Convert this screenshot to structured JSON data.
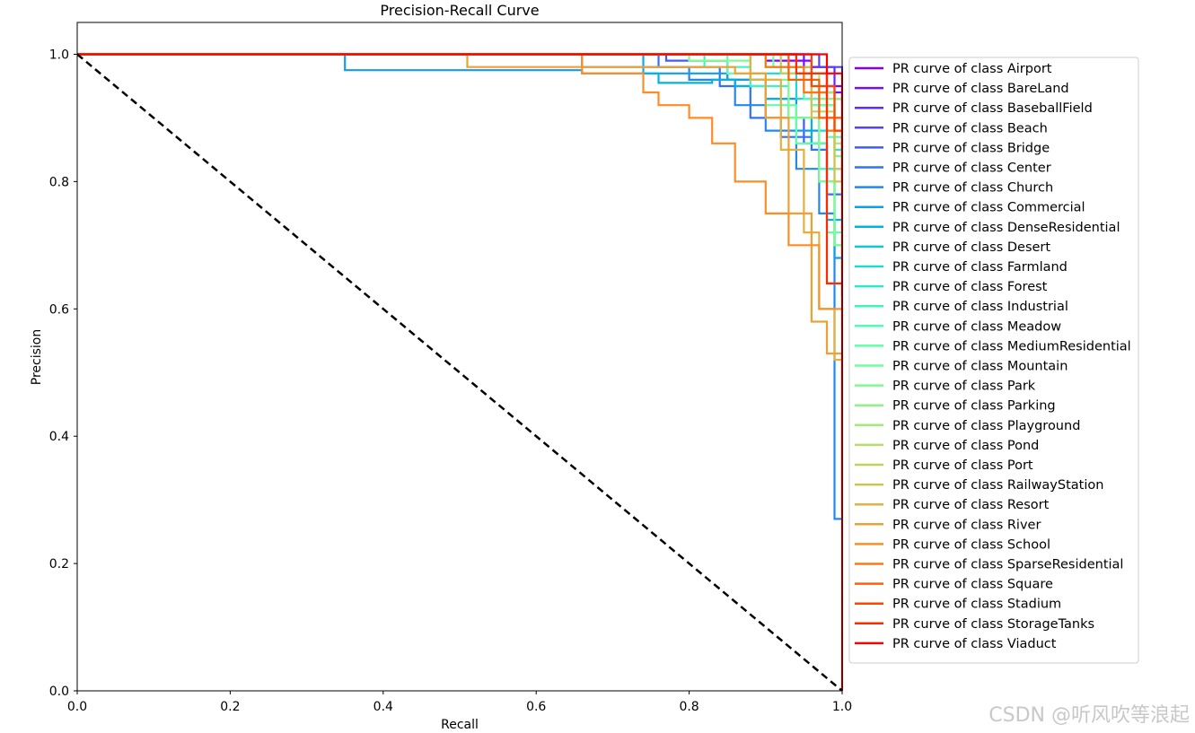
{
  "chart_data": {
    "type": "line",
    "title": "Precision-Recall Curve",
    "xlabel": "Recall",
    "ylabel": "Precision",
    "xlim": [
      0.0,
      1.0
    ],
    "ylim": [
      0.0,
      1.05
    ],
    "xticks": [
      "0.0",
      "0.2",
      "0.4",
      "0.6",
      "0.8",
      "1.0"
    ],
    "yticks": [
      "0.0",
      "0.2",
      "0.4",
      "0.6",
      "0.8",
      "1.0"
    ],
    "grid": false,
    "legend_position": "right",
    "baseline": {
      "name": "random",
      "style": "dashed",
      "color": "#000000",
      "x": [
        0,
        1
      ],
      "y": [
        1,
        0
      ]
    },
    "series": [
      {
        "name": "PR curve of class Airport",
        "color": "#8000ff",
        "x": [
          0,
          0.9,
          0.9,
          0.96,
          0.96,
          0.98,
          0.98,
          1.0,
          1.0
        ],
        "y": [
          1,
          1,
          0.99,
          0.99,
          0.97,
          0.97,
          0.95,
          0.95,
          0.93
        ]
      },
      {
        "name": "PR curve of class BareLand",
        "color": "#7010ff",
        "x": [
          0,
          0.95,
          0.95,
          0.98,
          0.98,
          1.0,
          1.0
        ],
        "y": [
          1,
          1,
          0.98,
          0.98,
          0.94,
          0.94,
          0.9
        ]
      },
      {
        "name": "PR curve of class BaseballField",
        "color": "#6129fe",
        "x": [
          0,
          0.94,
          0.94,
          0.99,
          0.99,
          1.0,
          1.0
        ],
        "y": [
          1,
          1,
          0.98,
          0.98,
          0.93,
          0.93,
          0.92
        ]
      },
      {
        "name": "PR curve of class Beach",
        "color": "#5142fc",
        "x": [
          0,
          0.97,
          0.97,
          1.0,
          1.0
        ],
        "y": [
          1,
          1,
          0.98,
          0.98,
          0.96
        ]
      },
      {
        "name": "PR curve of class Bridge",
        "color": "#415af9",
        "x": [
          0,
          0.77,
          0.77,
          0.85,
          0.85,
          0.9,
          0.9,
          0.95,
          0.95,
          0.98,
          0.98,
          1.0,
          1.0
        ],
        "y": [
          1,
          1,
          0.99,
          0.99,
          0.96,
          0.96,
          0.9,
          0.9,
          0.86,
          0.86,
          0.82,
          0.82,
          0.8
        ]
      },
      {
        "name": "PR curve of class Center",
        "color": "#3171f5",
        "x": [
          0,
          0.76,
          0.76,
          0.84,
          0.84,
          0.88,
          0.88,
          0.92,
          0.92,
          0.96,
          0.96,
          0.98,
          0.98,
          1.0,
          1.0
        ],
        "y": [
          1,
          1,
          0.98,
          0.98,
          0.95,
          0.95,
          0.9,
          0.9,
          0.87,
          0.87,
          0.85,
          0.85,
          0.78,
          0.78,
          0.76
        ]
      },
      {
        "name": "PR curve of class Church",
        "color": "#2188f0",
        "x": [
          0,
          0.66,
          0.66,
          0.8,
          0.8,
          0.86,
          0.86,
          0.9,
          0.9,
          0.94,
          0.94,
          0.97,
          0.97,
          0.99,
          0.99,
          1.0,
          1.0
        ],
        "y": [
          1,
          1,
          0.98,
          0.98,
          0.96,
          0.96,
          0.92,
          0.92,
          0.88,
          0.88,
          0.82,
          0.82,
          0.75,
          0.75,
          0.27,
          0.27,
          0.27
        ]
      },
      {
        "name": "PR curve of class Commercial",
        "color": "#119dea",
        "x": [
          0,
          0.35,
          0.35,
          0.66,
          0.66,
          0.85,
          0.85,
          0.9,
          0.9,
          0.94,
          0.94,
          0.97,
          0.97,
          0.99,
          0.99,
          1.0,
          1.0
        ],
        "y": [
          1,
          1,
          0.975,
          0.975,
          0.97,
          0.97,
          0.96,
          0.96,
          0.93,
          0.93,
          0.88,
          0.88,
          0.8,
          0.8,
          0.68,
          0.68,
          0.66
        ]
      },
      {
        "name": "PR curve of class DenseResidential",
        "color": "#01b2e3",
        "x": [
          0,
          0.74,
          0.74,
          0.76,
          0.76,
          0.83,
          0.83,
          0.86,
          0.86,
          0.9,
          0.9,
          0.93,
          0.93,
          0.96,
          0.96,
          0.98,
          0.98,
          1.0,
          1.0
        ],
        "y": [
          1,
          1,
          0.97,
          0.97,
          0.955,
          0.955,
          0.96,
          0.96,
          0.95,
          0.95,
          0.93,
          0.93,
          0.9,
          0.9,
          0.86,
          0.86,
          0.74,
          0.74,
          0.72
        ]
      },
      {
        "name": "PR curve of class Desert",
        "color": "#0ec5db",
        "x": [
          0,
          0.9,
          0.9,
          0.95,
          0.95,
          0.98,
          0.98,
          1.0,
          1.0
        ],
        "y": [
          1,
          1,
          0.98,
          0.98,
          0.94,
          0.94,
          0.9,
          0.9,
          0.87
        ]
      },
      {
        "name": "PR curve of class Farmland",
        "color": "#1fd7d3",
        "x": [
          0,
          0.88,
          0.88,
          0.94,
          0.94,
          0.97,
          0.97,
          1.0,
          1.0
        ],
        "y": [
          1,
          1,
          0.97,
          0.97,
          0.93,
          0.93,
          0.88,
          0.88,
          0.82
        ]
      },
      {
        "name": "PR curve of class Forest",
        "color": "#2fe7ca",
        "x": [
          0,
          0.92,
          0.92,
          0.96,
          0.96,
          0.99,
          0.99,
          1.0,
          1.0
        ],
        "y": [
          1,
          1,
          0.97,
          0.97,
          0.92,
          0.92,
          0.85,
          0.85,
          0.8
        ]
      },
      {
        "name": "PR curve of class Industrial",
        "color": "#3ff3c0",
        "x": [
          0,
          0.82,
          0.82,
          0.88,
          0.88,
          0.93,
          0.93,
          0.97,
          0.97,
          0.99,
          0.99,
          1.0,
          1.0
        ],
        "y": [
          1,
          1,
          0.98,
          0.98,
          0.95,
          0.95,
          0.9,
          0.9,
          0.82,
          0.82,
          0.7,
          0.7,
          0.65
        ]
      },
      {
        "name": "PR curve of class Meadow",
        "color": "#50fcb5",
        "x": [
          0,
          0.9,
          0.9,
          0.95,
          0.95,
          0.98,
          0.98,
          1.0,
          1.0
        ],
        "y": [
          1,
          1,
          0.98,
          0.98,
          0.93,
          0.93,
          0.87,
          0.87,
          0.8
        ]
      },
      {
        "name": "PR curve of class MediumResidential",
        "color": "#61feaa",
        "x": [
          0,
          0.85,
          0.85,
          0.9,
          0.9,
          0.94,
          0.94,
          0.98,
          0.98,
          1.0,
          1.0
        ],
        "y": [
          1,
          1,
          0.97,
          0.97,
          0.92,
          0.92,
          0.86,
          0.86,
          0.72,
          0.72,
          0.62
        ]
      },
      {
        "name": "PR curve of class Mountain",
        "color": "#71fe9f",
        "x": [
          0,
          0.91,
          0.91,
          0.96,
          0.96,
          0.99,
          0.99,
          1.0,
          1.0
        ],
        "y": [
          1,
          1,
          0.98,
          0.98,
          0.92,
          0.92,
          0.84,
          0.84,
          0.78
        ]
      },
      {
        "name": "PR curve of class Park",
        "color": "#81fa92",
        "x": [
          0,
          0.8,
          0.8,
          0.88,
          0.88,
          0.93,
          0.93,
          0.97,
          0.97,
          0.99,
          0.99,
          1.0,
          1.0
        ],
        "y": [
          1,
          1,
          0.99,
          0.99,
          0.96,
          0.96,
          0.9,
          0.9,
          0.8,
          0.8,
          0.7,
          0.7,
          0.66
        ]
      },
      {
        "name": "PR curve of class Parking",
        "color": "#91f385",
        "x": [
          0,
          0.93,
          0.93,
          0.97,
          0.97,
          1.0,
          1.0
        ],
        "y": [
          1,
          1,
          0.97,
          0.97,
          0.93,
          0.93,
          0.9
        ]
      },
      {
        "name": "PR curve of class Playground",
        "color": "#a1ea79",
        "x": [
          0,
          0.9,
          0.9,
          0.95,
          0.95,
          0.99,
          0.99,
          1.0,
          1.0
        ],
        "y": [
          1,
          1,
          0.98,
          0.98,
          0.94,
          0.94,
          0.86,
          0.86,
          0.8
        ]
      },
      {
        "name": "PR curve of class Pond",
        "color": "#b2de6b",
        "x": [
          0,
          0.94,
          0.94,
          0.98,
          0.98,
          1.0,
          1.0
        ],
        "y": [
          1,
          1,
          0.97,
          0.97,
          0.9,
          0.9,
          0.84
        ]
      },
      {
        "name": "PR curve of class Port",
        "color": "#c2d15d",
        "x": [
          0,
          0.92,
          0.92,
          0.96,
          0.96,
          0.99,
          0.99,
          1.0,
          1.0
        ],
        "y": [
          1,
          1,
          0.97,
          0.97,
          0.91,
          0.91,
          0.82,
          0.82,
          0.78
        ]
      },
      {
        "name": "PR curve of class RailwayStation",
        "color": "#d2c24f",
        "x": [
          0,
          0.93,
          0.93,
          0.96,
          0.96,
          0.99,
          0.99,
          1.0,
          1.0
        ],
        "y": [
          1,
          1,
          0.98,
          0.98,
          0.9,
          0.9,
          0.8,
          0.8,
          0.74
        ]
      },
      {
        "name": "PR curve of class Resort",
        "color": "#e2b140",
        "x": [
          0,
          0.88,
          0.88,
          0.92,
          0.92,
          0.95,
          0.95,
          0.97,
          0.97,
          0.99,
          0.99,
          1.0,
          1.0
        ],
        "y": [
          1,
          1,
          0.96,
          0.96,
          0.85,
          0.85,
          0.72,
          0.72,
          0.6,
          0.6,
          0.52,
          0.52,
          0.33
        ]
      },
      {
        "name": "PR curve of class River",
        "color": "#f29f32",
        "x": [
          0,
          0.51,
          0.51,
          0.86,
          0.86,
          0.9,
          0.9,
          0.93,
          0.93,
          0.96,
          0.96,
          0.98,
          0.98,
          1.0,
          1.0
        ],
        "y": [
          1,
          1,
          0.98,
          0.98,
          0.97,
          0.97,
          0.9,
          0.9,
          0.75,
          0.75,
          0.58,
          0.58,
          0.53,
          0.53,
          0.28
        ]
      },
      {
        "name": "PR curve of class School",
        "color": "#ff8c25",
        "x": [
          0,
          0.66,
          0.66,
          0.74,
          0.74,
          0.76,
          0.76,
          0.8,
          0.8,
          0.83,
          0.83,
          0.86,
          0.86,
          0.9,
          0.9,
          0.93,
          0.93,
          0.97,
          0.97,
          1.0,
          1.0
        ],
        "y": [
          1,
          1,
          0.97,
          0.97,
          0.94,
          0.94,
          0.92,
          0.92,
          0.9,
          0.9,
          0.86,
          0.86,
          0.8,
          0.8,
          0.75,
          0.75,
          0.7,
          0.7,
          0.6,
          0.6,
          0.57
        ]
      },
      {
        "name": "PR curve of class SparseResidential",
        "color": "#ff7616",
        "x": [
          0,
          0.9,
          0.9,
          0.95,
          0.95,
          0.98,
          0.98,
          1.0,
          1.0
        ],
        "y": [
          1,
          1,
          0.98,
          0.98,
          0.94,
          0.94,
          0.88,
          0.88,
          0.84
        ]
      },
      {
        "name": "PR curve of class Square",
        "color": "#ff5e08",
        "x": [
          0,
          0.93,
          0.93,
          0.97,
          0.97,
          1.0,
          1.0
        ],
        "y": [
          1,
          1,
          0.96,
          0.96,
          0.9,
          0.9,
          0.86
        ]
      },
      {
        "name": "PR curve of class Stadium",
        "color": "#ff4500",
        "x": [
          0,
          0.96,
          0.96,
          0.99,
          0.99,
          1.0,
          1.0
        ],
        "y": [
          1,
          1,
          0.95,
          0.95,
          0.88,
          0.88,
          0.8
        ]
      },
      {
        "name": "PR curve of class StorageTanks",
        "color": "#ff2a00",
        "x": [
          0,
          0.94,
          0.94,
          0.98,
          0.98,
          1.0,
          1.0
        ],
        "y": [
          1,
          1,
          0.97,
          0.97,
          0.64,
          0.64,
          0.62
        ]
      },
      {
        "name": "PR curve of class Viaduct",
        "color": "#ff0000",
        "x": [
          0,
          0.98,
          0.98,
          1.0,
          1.0
        ],
        "y": [
          1,
          1,
          0.97,
          0.97,
          0.0
        ]
      }
    ]
  },
  "watermark": "CSDN @听风吹等浪起"
}
